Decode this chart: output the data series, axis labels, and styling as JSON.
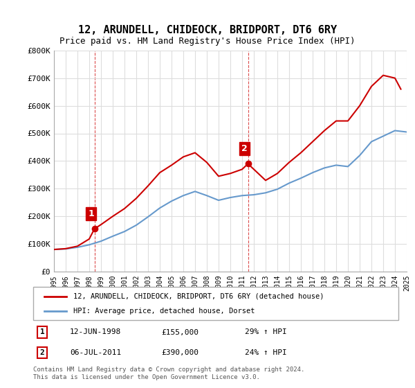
{
  "title": "12, ARUNDELL, CHIDEOCK, BRIDPORT, DT6 6RY",
  "subtitle": "Price paid vs. HM Land Registry's House Price Index (HPI)",
  "legend_label_red": "12, ARUNDELL, CHIDEOCK, BRIDPORT, DT6 6RY (detached house)",
  "legend_label_blue": "HPI: Average price, detached house, Dorset",
  "sale1_date": "12-JUN-1998",
  "sale1_price": 155000,
  "sale1_pct": "29% ↑ HPI",
  "sale2_date": "06-JUL-2011",
  "sale2_price": 390000,
  "sale2_pct": "24% ↑ HPI",
  "footnote": "Contains HM Land Registry data © Crown copyright and database right 2024.\nThis data is licensed under the Open Government Licence v3.0.",
  "ylim": [
    0,
    800000
  ],
  "yticks": [
    0,
    100000,
    200000,
    300000,
    400000,
    500000,
    600000,
    700000,
    800000
  ],
  "ytick_labels": [
    "£0",
    "£100K",
    "£200K",
    "£300K",
    "£400K",
    "£500K",
    "£600K",
    "£700K",
    "£800K"
  ],
  "xlim": [
    1995,
    2025
  ],
  "xticks": [
    1995,
    1996,
    1997,
    1998,
    1999,
    2000,
    2001,
    2002,
    2003,
    2004,
    2005,
    2006,
    2007,
    2008,
    2009,
    2010,
    2011,
    2012,
    2013,
    2014,
    2015,
    2016,
    2017,
    2018,
    2019,
    2020,
    2021,
    2022,
    2023,
    2024,
    2025
  ],
  "red_color": "#cc0000",
  "blue_color": "#6699cc",
  "marker1_x": 1998.45,
  "marker1_y": 155000,
  "marker2_x": 2011.5,
  "marker2_y": 390000,
  "hpi_x": [
    1995,
    1996,
    1997,
    1998,
    1999,
    2000,
    2001,
    2002,
    2003,
    2004,
    2005,
    2006,
    2007,
    2008,
    2009,
    2010,
    2011,
    2012,
    2013,
    2014,
    2015,
    2016,
    2017,
    2018,
    2019,
    2020,
    2021,
    2022,
    2023,
    2024,
    2025
  ],
  "hpi_y": [
    80000,
    82000,
    88000,
    97000,
    110000,
    128000,
    145000,
    168000,
    198000,
    230000,
    255000,
    275000,
    290000,
    275000,
    258000,
    268000,
    275000,
    278000,
    285000,
    298000,
    320000,
    338000,
    358000,
    375000,
    385000,
    380000,
    420000,
    470000,
    490000,
    510000,
    505000
  ],
  "price_x": [
    1995.0,
    1996.0,
    1997.0,
    1998.0,
    1998.45,
    1999.0,
    2000.0,
    2001.0,
    2002.0,
    2003.0,
    2004.0,
    2005.0,
    2006.0,
    2007.0,
    2008.0,
    2009.0,
    2010.0,
    2011.0,
    2011.5,
    2012.0,
    2013.0,
    2014.0,
    2015.0,
    2016.0,
    2017.0,
    2018.0,
    2019.0,
    2020.0,
    2021.0,
    2022.0,
    2023.0,
    2024.0,
    2024.5
  ],
  "price_y": [
    80000,
    83000,
    92000,
    118000,
    155000,
    170000,
    200000,
    228000,
    265000,
    310000,
    358000,
    385000,
    415000,
    430000,
    395000,
    345000,
    355000,
    370000,
    390000,
    370000,
    330000,
    355000,
    395000,
    430000,
    470000,
    510000,
    545000,
    545000,
    600000,
    670000,
    710000,
    700000,
    660000
  ]
}
